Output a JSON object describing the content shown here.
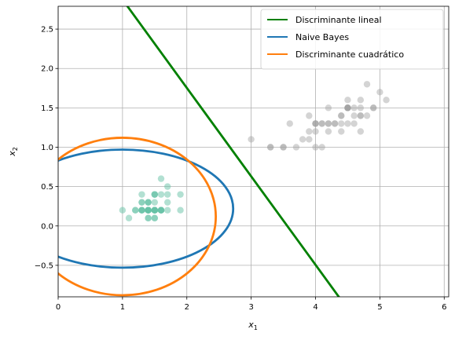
{
  "chart_data": {
    "type": "scatter",
    "title": "",
    "xlabel": "x",
    "xlabel_sub": "1",
    "ylabel": "x",
    "ylabel_sub": "2",
    "xlim": [
      0,
      6.07
    ],
    "ylim": [
      -0.9,
      2.79
    ],
    "xticks": [
      0,
      1,
      2,
      3,
      4,
      5,
      6
    ],
    "yticks": [
      -0.5,
      0.0,
      0.5,
      1.0,
      1.5,
      2.0,
      2.5
    ],
    "grid": true,
    "legend_position": "top-right",
    "legend": [
      {
        "name": "Discriminante lineal",
        "color": "#008000"
      },
      {
        "name": "Naive Bayes",
        "color": "#1f77b4"
      },
      {
        "name": "Discriminante cuadrático",
        "color": "#ff7f0e"
      }
    ],
    "scatter_groups": [
      {
        "color": "#66c2a5",
        "alpha": 0.5,
        "points": [
          [
            1.4,
            0.2
          ],
          [
            1.4,
            0.2
          ],
          [
            1.3,
            0.2
          ],
          [
            1.5,
            0.2
          ],
          [
            1.4,
            0.2
          ],
          [
            1.7,
            0.4
          ],
          [
            1.4,
            0.3
          ],
          [
            1.5,
            0.2
          ],
          [
            1.4,
            0.2
          ],
          [
            1.5,
            0.1
          ],
          [
            1.5,
            0.2
          ],
          [
            1.6,
            0.2
          ],
          [
            1.4,
            0.1
          ],
          [
            1.1,
            0.1
          ],
          [
            1.2,
            0.2
          ],
          [
            1.5,
            0.4
          ],
          [
            1.3,
            0.4
          ],
          [
            1.4,
            0.3
          ],
          [
            1.7,
            0.3
          ],
          [
            1.5,
            0.3
          ],
          [
            1.7,
            0.2
          ],
          [
            1.5,
            0.4
          ],
          [
            1.0,
            0.2
          ],
          [
            1.7,
            0.5
          ],
          [
            1.9,
            0.2
          ],
          [
            1.6,
            0.2
          ],
          [
            1.6,
            0.4
          ],
          [
            1.5,
            0.2
          ],
          [
            1.4,
            0.2
          ],
          [
            1.6,
            0.2
          ],
          [
            1.6,
            0.2
          ],
          [
            1.5,
            0.4
          ],
          [
            1.5,
            0.1
          ],
          [
            1.4,
            0.2
          ],
          [
            1.5,
            0.2
          ],
          [
            1.2,
            0.2
          ],
          [
            1.3,
            0.2
          ],
          [
            1.4,
            0.1
          ],
          [
            1.3,
            0.2
          ],
          [
            1.5,
            0.2
          ],
          [
            1.3,
            0.3
          ],
          [
            1.3,
            0.3
          ],
          [
            1.3,
            0.2
          ],
          [
            1.6,
            0.6
          ],
          [
            1.9,
            0.4
          ],
          [
            1.4,
            0.3
          ],
          [
            1.6,
            0.2
          ],
          [
            1.4,
            0.2
          ],
          [
            1.5,
            0.2
          ],
          [
            1.4,
            0.2
          ]
        ]
      },
      {
        "color": "#a0a0a0",
        "alpha": 0.45,
        "points": [
          [
            4.7,
            1.4
          ],
          [
            4.5,
            1.5
          ],
          [
            4.9,
            1.5
          ],
          [
            4.0,
            1.3
          ],
          [
            4.6,
            1.5
          ],
          [
            4.5,
            1.3
          ],
          [
            4.7,
            1.6
          ],
          [
            3.3,
            1.0
          ],
          [
            4.6,
            1.3
          ],
          [
            3.9,
            1.4
          ],
          [
            3.5,
            1.0
          ],
          [
            4.2,
            1.5
          ],
          [
            4.0,
            1.0
          ],
          [
            4.7,
            1.4
          ],
          [
            3.6,
            1.3
          ],
          [
            4.4,
            1.4
          ],
          [
            4.5,
            1.5
          ],
          [
            4.1,
            1.0
          ],
          [
            4.5,
            1.5
          ],
          [
            3.9,
            1.1
          ],
          [
            4.8,
            1.8
          ],
          [
            4.0,
            1.3
          ],
          [
            4.9,
            1.5
          ],
          [
            4.7,
            1.2
          ],
          [
            4.3,
            1.3
          ],
          [
            4.4,
            1.4
          ],
          [
            4.8,
            1.4
          ],
          [
            5.0,
            1.7
          ],
          [
            4.5,
            1.5
          ],
          [
            3.5,
            1.0
          ],
          [
            3.8,
            1.1
          ],
          [
            3.7,
            1.0
          ],
          [
            3.9,
            1.2
          ],
          [
            5.1,
            1.6
          ],
          [
            4.5,
            1.5
          ],
          [
            4.5,
            1.6
          ],
          [
            4.7,
            1.5
          ],
          [
            4.4,
            1.3
          ],
          [
            4.1,
            1.3
          ],
          [
            4.0,
            1.3
          ],
          [
            4.4,
            1.2
          ],
          [
            4.6,
            1.4
          ],
          [
            4.0,
            1.2
          ],
          [
            3.3,
            1.0
          ],
          [
            4.2,
            1.3
          ],
          [
            4.2,
            1.2
          ],
          [
            4.2,
            1.3
          ],
          [
            4.3,
            1.3
          ],
          [
            3.0,
            1.1
          ],
          [
            4.1,
            1.3
          ]
        ]
      }
    ],
    "lines": [
      {
        "name": "Discriminante lineal",
        "color": "#008000",
        "points": [
          [
            1.05,
            2.82
          ],
          [
            4.38,
            -0.92
          ]
        ]
      }
    ],
    "ellipses": [
      {
        "name": "Naive Bayes",
        "color": "#1f77b4",
        "center": [
          1.0,
          0.22
        ],
        "rx": 1.72,
        "ry": 0.75
      },
      {
        "name": "Discriminante cuadrático",
        "color": "#ff7f0e",
        "center": [
          1.0,
          0.12
        ],
        "rx": 1.45,
        "ry": 1.0
      }
    ]
  }
}
